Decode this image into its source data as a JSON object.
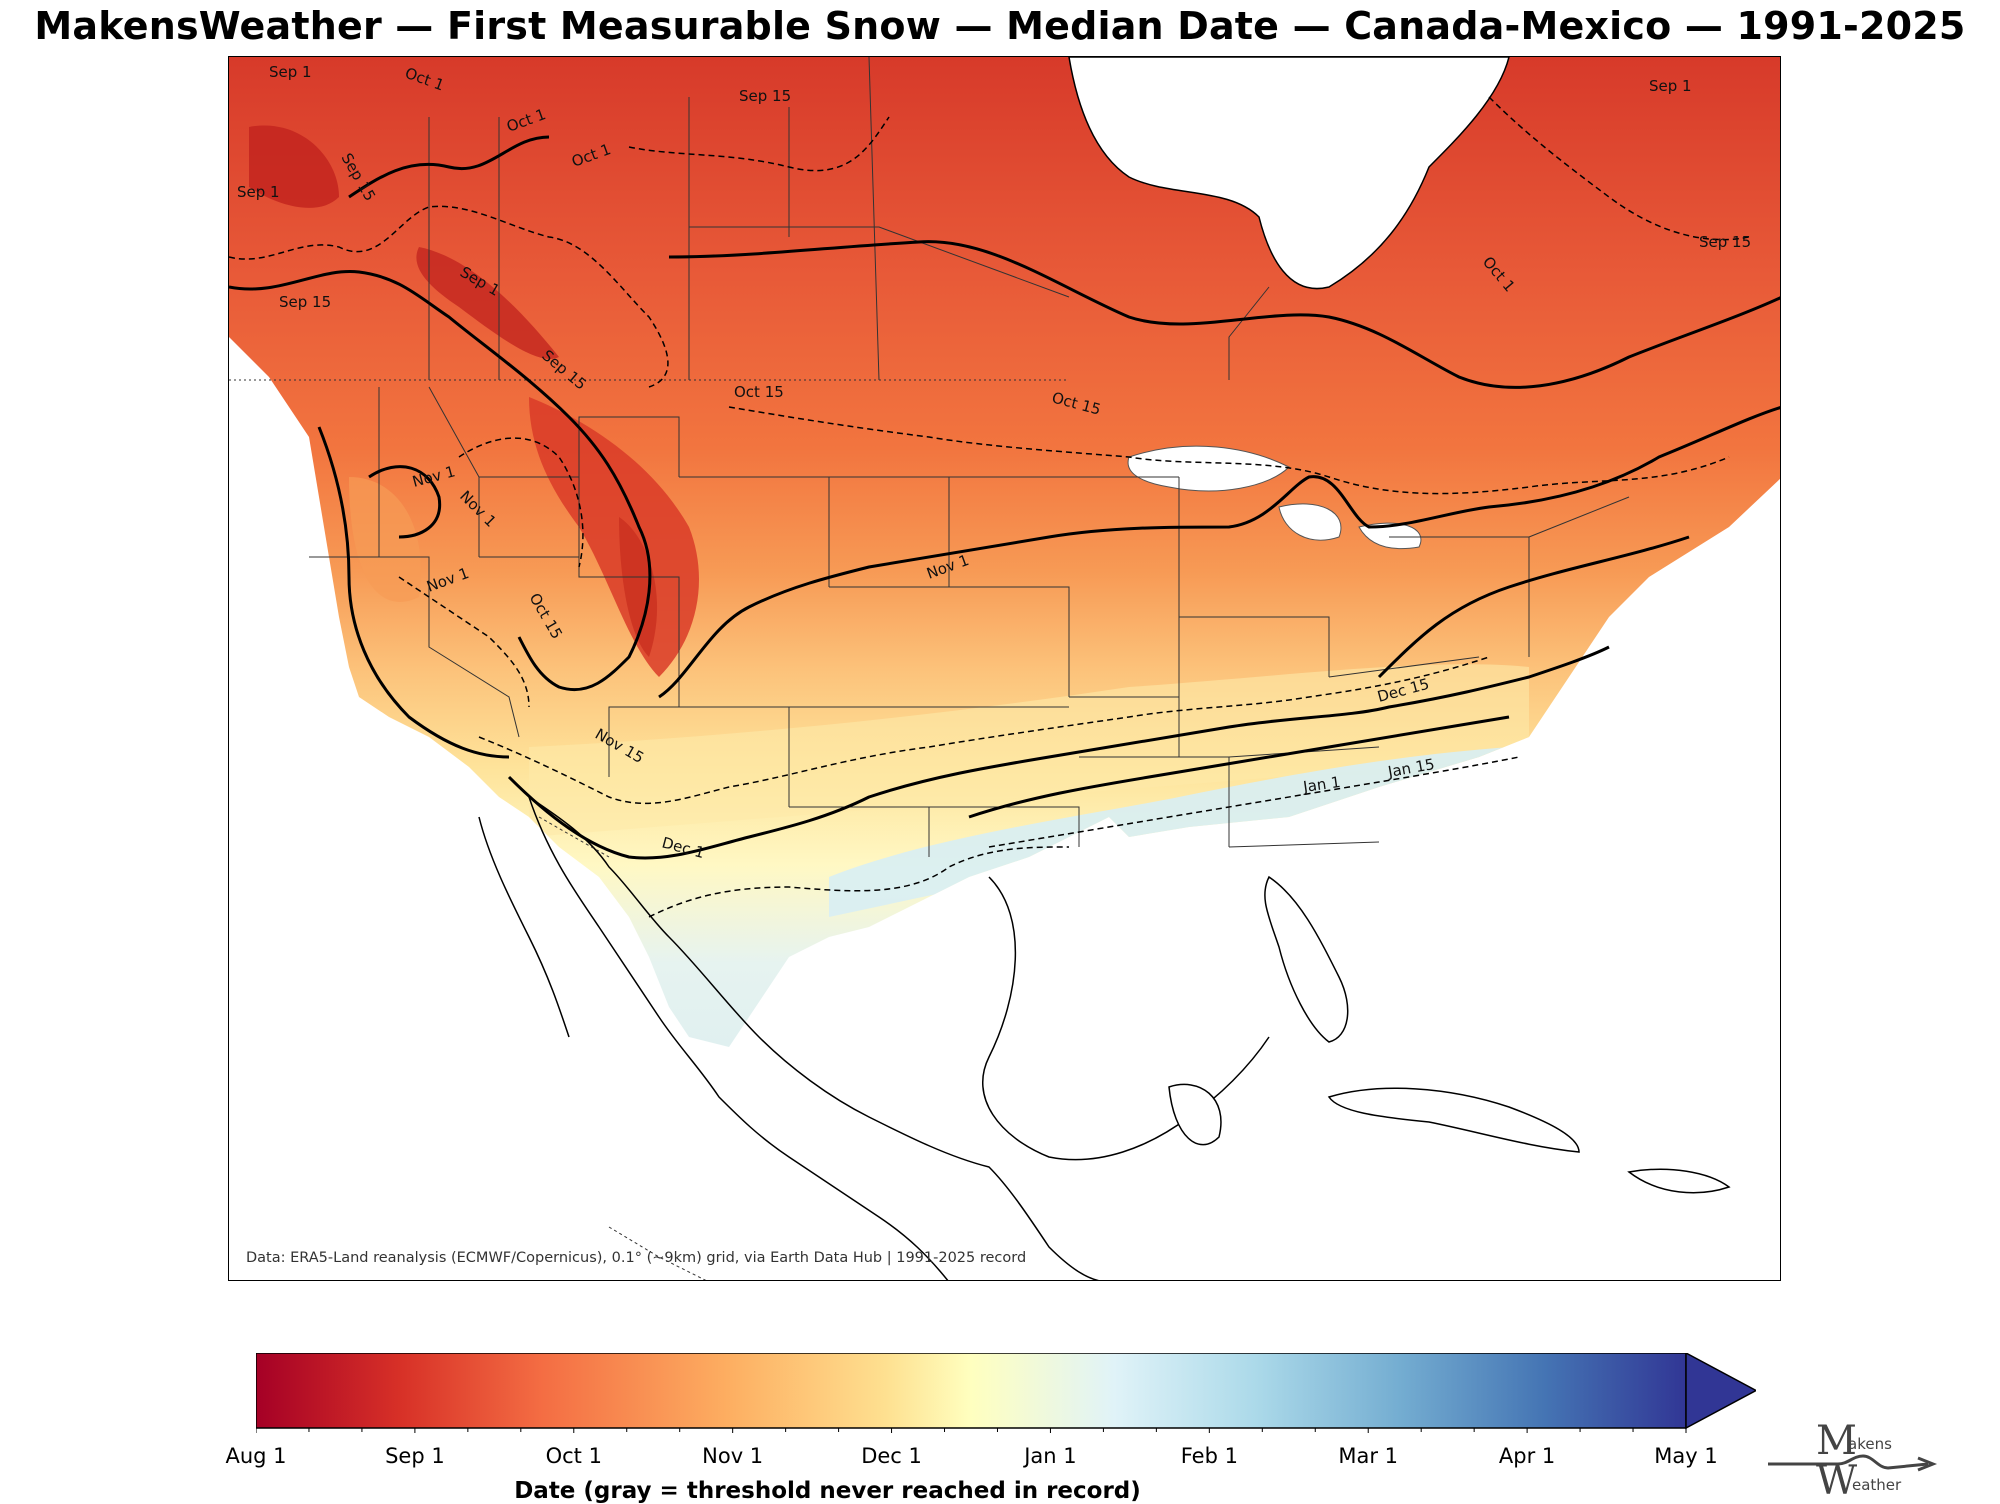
{
  "title": "MakensWeather — First Measurable Snow — Median Date — Canada-Mexico — 1991-2025",
  "credit": "Data: ERA5-Land reanalysis (ECMWF/Copernicus), 0.1° (~9km) grid, via Earth Data Hub | 1991-2025 record",
  "colorbar": {
    "label": "Date (gray = threshold never reached in record)",
    "ticks": [
      "Aug 1",
      "Sep 1",
      "Oct 1",
      "Nov 1",
      "Dec 1",
      "Jan 1",
      "Feb 1",
      "Mar 1",
      "Apr 1",
      "May 1"
    ],
    "extend": "max",
    "colors": [
      "#a50026",
      "#d73027",
      "#f46d43",
      "#fdae61",
      "#fee090",
      "#ffffbf",
      "#e0f3f8",
      "#abd9e9",
      "#74add1",
      "#4575b4",
      "#313695"
    ]
  },
  "contour_labels": [
    "Sep 1",
    "Sep 15",
    "Oct 1",
    "Oct 15",
    "Nov 1",
    "Nov 15",
    "Dec 1",
    "Dec 15",
    "Jan 1",
    "Jan 15"
  ],
  "logo": {
    "top": "M",
    "top_small": "akens",
    "bottom": "W",
    "bottom_small": "eather"
  }
}
